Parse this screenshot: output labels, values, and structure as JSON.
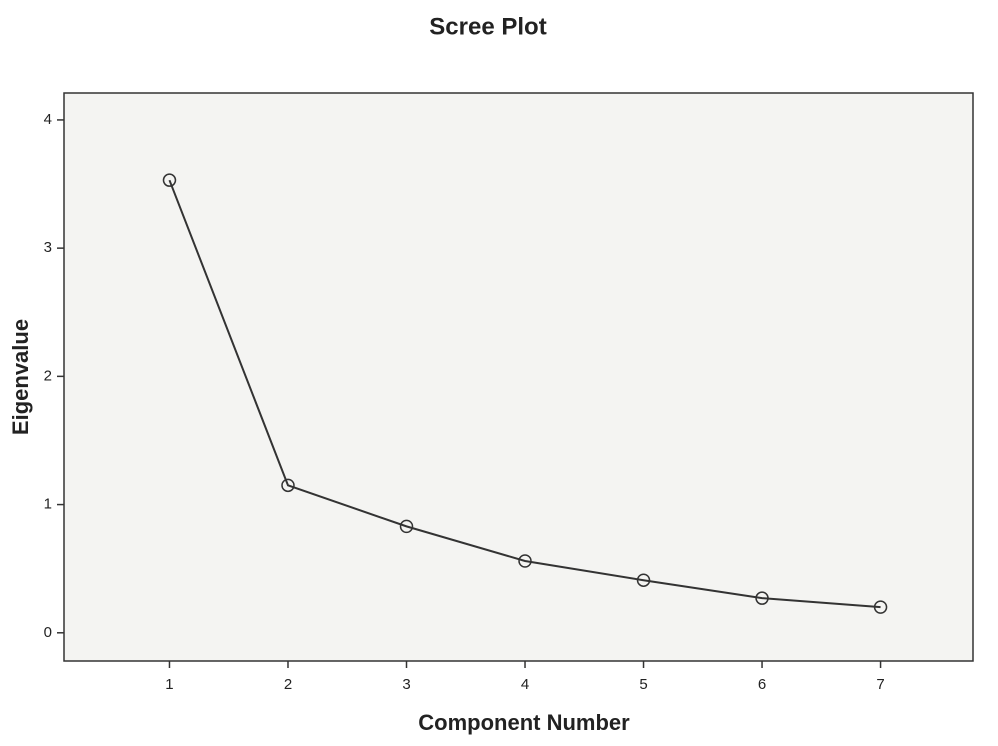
{
  "chart_data": {
    "type": "line",
    "title": "Scree Plot",
    "x_label": "Component Number",
    "y_label": "Eigenvalue",
    "x": [
      1,
      2,
      3,
      4,
      5,
      6,
      7
    ],
    "series": [
      {
        "color": "#333333",
        "values": [
          3.53,
          1.15,
          0.83,
          0.56,
          0.41,
          0.27,
          0.2
        ]
      }
    ],
    "xlim": [
      0.11,
      7.78
    ],
    "xticks": [
      1,
      2,
      3,
      4,
      5,
      6,
      7
    ],
    "ylim": [
      -0.22,
      4.21
    ],
    "yticks": [
      0,
      1,
      2,
      3,
      4
    ]
  }
}
